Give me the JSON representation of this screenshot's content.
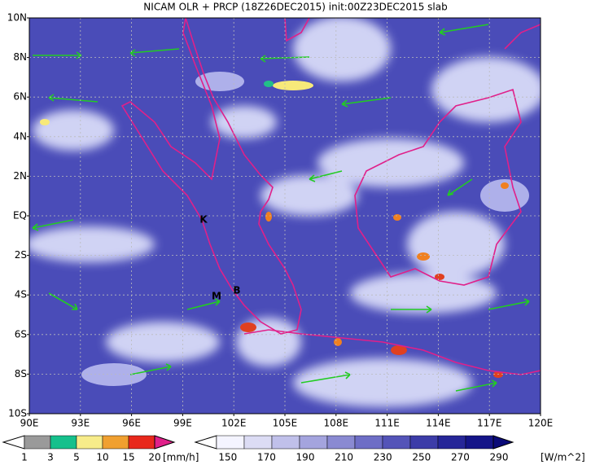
{
  "title": "NICAM OLR + PRCP (18Z26DEC2015) init:00Z23DEC2015 slab",
  "lat_labels": [
    "10N",
    "8N",
    "6N",
    "4N",
    "2N",
    "EQ",
    "2S",
    "4S",
    "6S",
    "8S",
    "10S"
  ],
  "lon_labels": [
    "90E",
    "93E",
    "96E",
    "99E",
    "102E",
    "105E",
    "108E",
    "111E",
    "114E",
    "117E",
    "120E"
  ],
  "place_labels": [
    "K",
    "M",
    "B"
  ],
  "precip_legend": {
    "labels": [
      "1",
      "3",
      "5",
      "10",
      "15",
      "20"
    ],
    "unit": "[mm/h]"
  },
  "olr_legend": {
    "labels": [
      "150",
      "170",
      "190",
      "210",
      "230",
      "250",
      "270",
      "290"
    ],
    "unit": "[W/m^2]"
  }
}
